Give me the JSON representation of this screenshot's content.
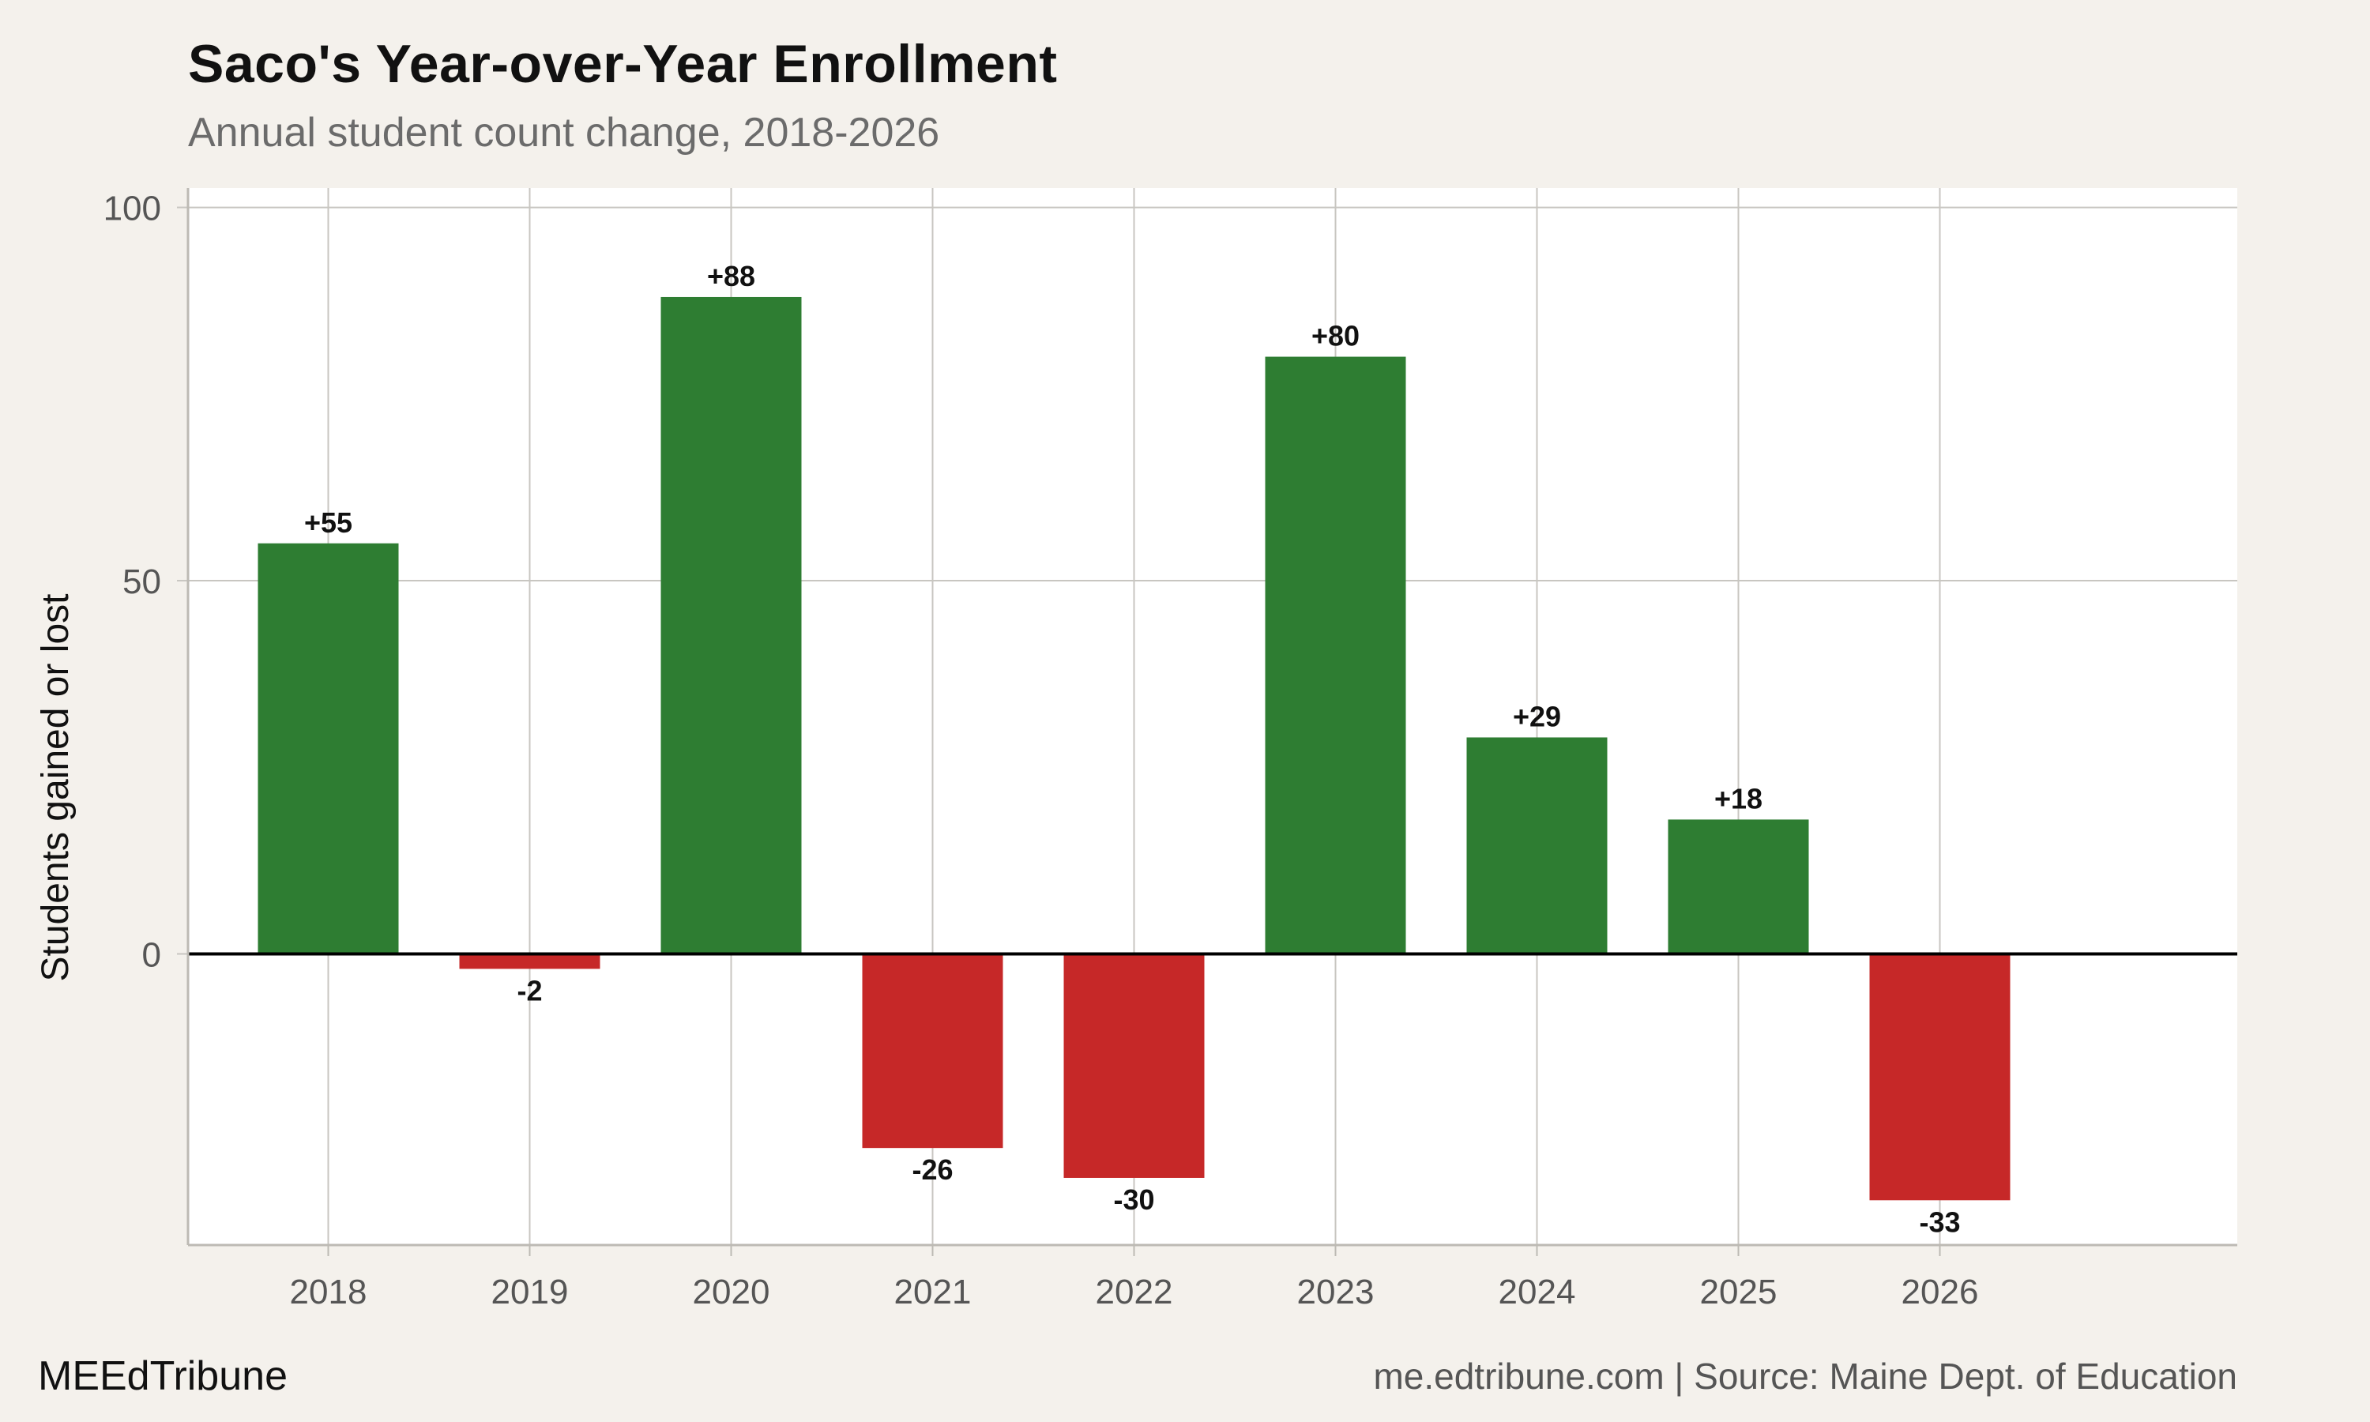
{
  "chart_data": {
    "type": "bar",
    "title": "Saco's Year-over-Year Enrollment",
    "subtitle": "Annual student count change, 2018-2026",
    "xlabel": "",
    "ylabel": "Students gained or lost",
    "categories": [
      "2018",
      "2019",
      "2020",
      "2021",
      "2022",
      "2023",
      "2024",
      "2025",
      "2026"
    ],
    "values": [
      55,
      -2,
      88,
      -26,
      -30,
      80,
      29,
      18,
      -33
    ],
    "data_labels": [
      "+55",
      "-2",
      "+88",
      "-26",
      "-30",
      "+80",
      "+29",
      "+18",
      "-33"
    ],
    "ylim": [
      -39,
      102.6
    ],
    "yticks": [
      0,
      50,
      100
    ],
    "ytick_labels": [
      "0",
      "50",
      "100"
    ],
    "grid": true,
    "legend": "none",
    "colors": {
      "positive": "#2e7d32",
      "negative": "#c62828",
      "zero_line": "#000000",
      "grid": "#c8c6c1",
      "panel_background": "#ffffff",
      "page_background": "#f4f1ec"
    }
  },
  "footer": {
    "brand": "MEEdTribune",
    "source": "me.edtribune.com | Source: Maine Dept. of Education"
  }
}
